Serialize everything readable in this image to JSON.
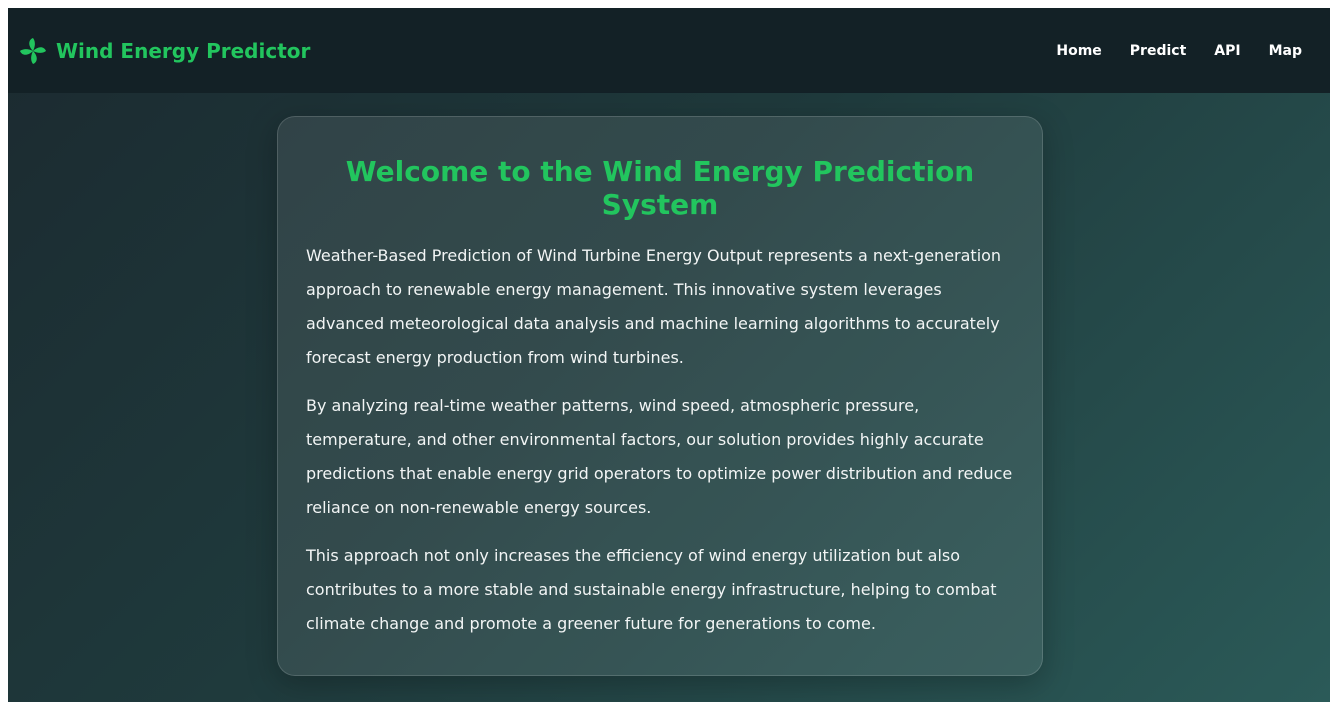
{
  "nav": {
    "brand": "Wind Energy Predictor",
    "links": [
      "Home",
      "Predict",
      "API",
      "Map"
    ]
  },
  "main": {
    "title": "Welcome to the Wind Energy Prediction System",
    "paragraphs": [
      "Weather-Based Prediction of Wind Turbine Energy Output represents a next-generation approach to renewable energy management. This innovative system leverages advanced meteorological data analysis and machine learning algorithms to accurately forecast energy production from wind turbines.",
      "By analyzing real-time weather patterns, wind speed, atmospheric pressure, temperature, and other environmental factors, our solution provides highly accurate predictions that enable energy grid operators to optimize power distribution and reduce reliance on non-renewable energy sources.",
      "This approach not only increases the efficiency of wind energy utilization but also contributes to a more stable and sustainable energy infrastructure, helping to combat climate change and promote a greener future for generations to come."
    ]
  }
}
